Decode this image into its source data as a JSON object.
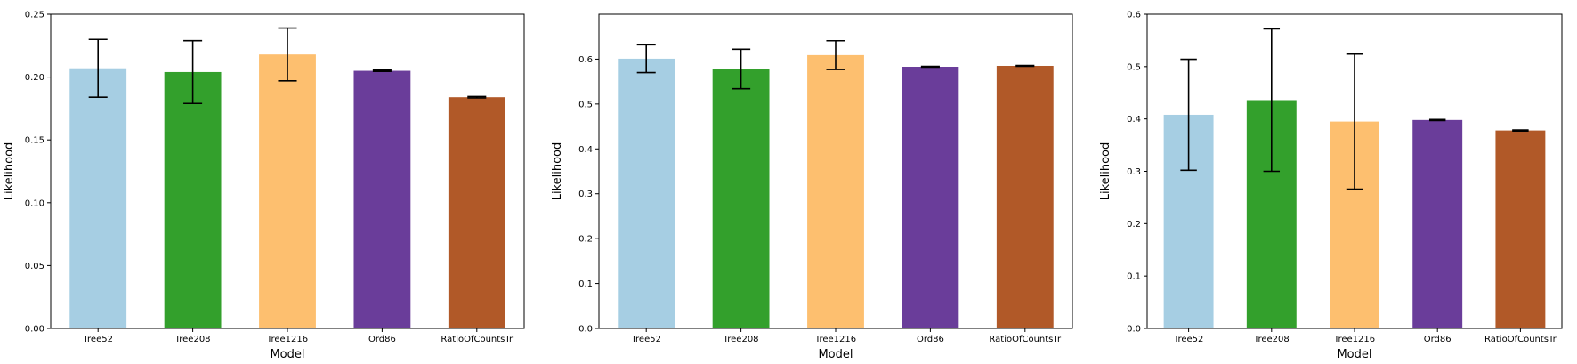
{
  "chart_data": [
    {
      "type": "bar",
      "categories": [
        "Tree52",
        "Tree208",
        "Tree1216",
        "Ord86",
        "RatioOfCountsTr"
      ],
      "values": [
        0.207,
        0.204,
        0.218,
        0.205,
        0.184
      ],
      "errors": [
        0.023,
        0.025,
        0.021,
        0.0005,
        0.0005
      ],
      "colors": [
        "#a6cee3",
        "#33a02c",
        "#fdbf6f",
        "#6a3d9a",
        "#b15928"
      ],
      "xlabel": "Model",
      "ylabel": "Likelihood",
      "ylim": [
        0,
        0.25
      ],
      "yticks": [
        0.0,
        0.05,
        0.1,
        0.15,
        0.2,
        0.25
      ],
      "ytick_labels": [
        "0.00",
        "0.05",
        "0.10",
        "0.15",
        "0.20",
        "0.25"
      ],
      "grid": false
    },
    {
      "type": "bar",
      "categories": [
        "Tree52",
        "Tree208",
        "Tree1216",
        "Ord86",
        "RatioOfCountsTr"
      ],
      "values": [
        0.601,
        0.578,
        0.609,
        0.583,
        0.585
      ],
      "errors": [
        0.031,
        0.044,
        0.032,
        0.001,
        0.001
      ],
      "colors": [
        "#a6cee3",
        "#33a02c",
        "#fdbf6f",
        "#6a3d9a",
        "#b15928"
      ],
      "xlabel": "Model",
      "ylabel": "Likelihood",
      "ylim": [
        0,
        0.7
      ],
      "yticks": [
        0.0,
        0.1,
        0.2,
        0.3,
        0.4,
        0.5,
        0.6
      ],
      "ytick_labels": [
        "0.0",
        "0.1",
        "0.2",
        "0.3",
        "0.4",
        "0.5",
        "0.6"
      ],
      "grid": false
    },
    {
      "type": "bar",
      "categories": [
        "Tree52",
        "Tree208",
        "Tree1216",
        "Ord86",
        "RatioOfCountsTr"
      ],
      "values": [
        0.408,
        0.436,
        0.395,
        0.398,
        0.378
      ],
      "errors": [
        0.106,
        0.136,
        0.129,
        0.001,
        0.001
      ],
      "colors": [
        "#a6cee3",
        "#33a02c",
        "#fdbf6f",
        "#6a3d9a",
        "#b15928"
      ],
      "xlabel": "Model",
      "ylabel": "Likelihood",
      "ylim": [
        0,
        0.6
      ],
      "yticks": [
        0.0,
        0.1,
        0.2,
        0.3,
        0.4,
        0.5,
        0.6
      ],
      "ytick_labels": [
        "0.0",
        "0.1",
        "0.2",
        "0.3",
        "0.4",
        "0.5",
        "0.6"
      ],
      "grid": false
    }
  ]
}
